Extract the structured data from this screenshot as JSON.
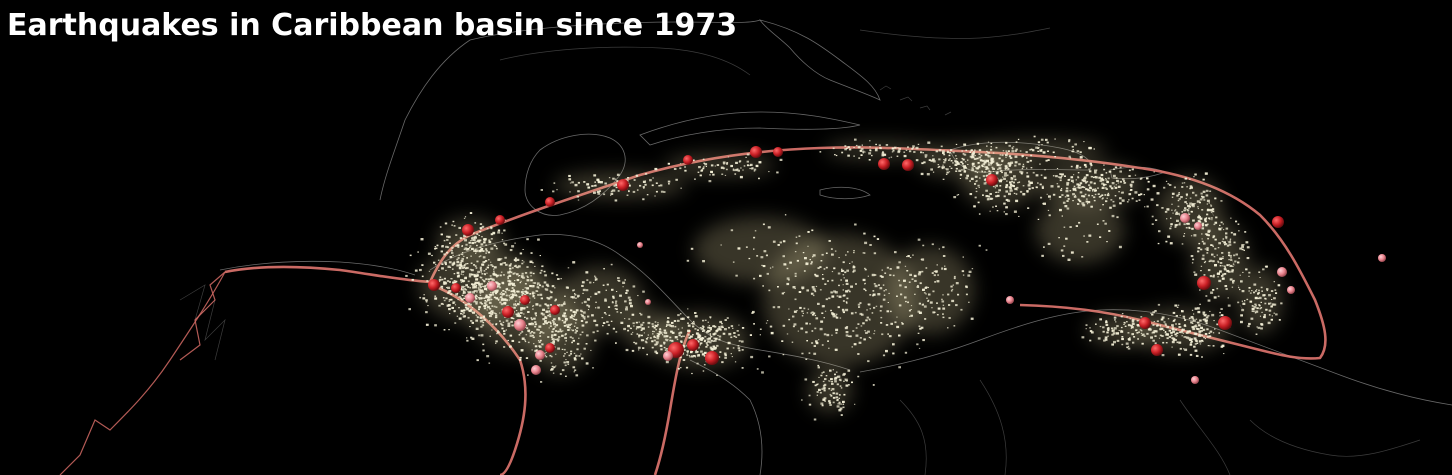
{
  "title": "Earthquakes in Caribbean basin since 1973",
  "colors": {
    "background": "#000000",
    "coastline": "#8c8c8c",
    "plate_boundary": "#e0766f",
    "small_quake": "#f3efd6",
    "small_quake_glow": "#fff3b8",
    "large_quake": "#c81e24",
    "medium_quake": "#e8828c"
  },
  "legend": []
}
